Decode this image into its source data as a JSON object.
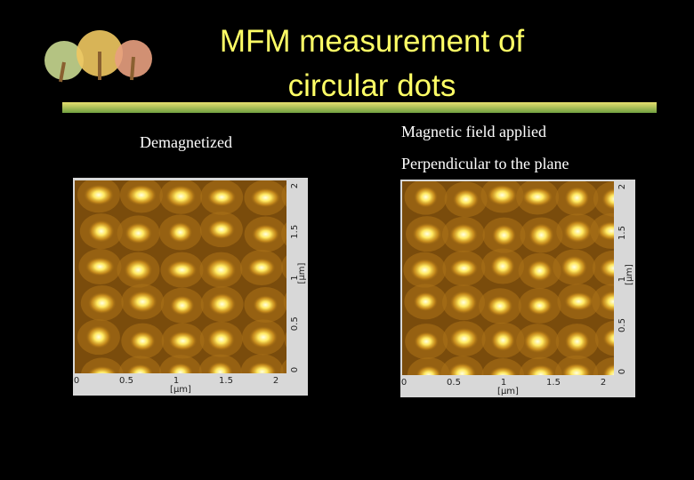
{
  "header": {
    "title_lines": [
      "MFM measurement of",
      "circular dots"
    ]
  },
  "panels": [
    {
      "captions": [
        "Demagnetized"
      ],
      "xticks": [
        "0",
        "0.5",
        "1",
        "1.5",
        "2"
      ],
      "xunit": "[µm]",
      "yticks": [
        "0",
        "0.5",
        "1",
        "1.5",
        "2"
      ],
      "yunit": "[µm]"
    },
    {
      "captions": [
        "Magnetic field applied",
        "Perpendicular to the plane"
      ],
      "xticks": [
        "0",
        "0.5",
        "1",
        "1.5",
        "2"
      ],
      "xunit": "[µm]",
      "yticks": [
        "0",
        "0.5",
        "1",
        "1.5",
        "2"
      ],
      "yunit": "[µm]"
    }
  ]
}
